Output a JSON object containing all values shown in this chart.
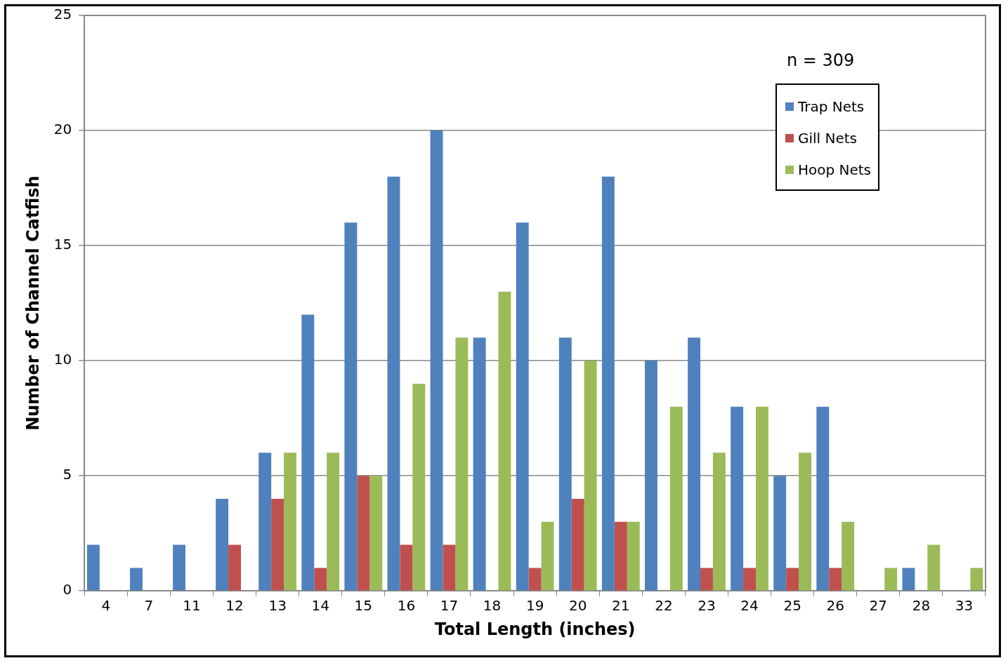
{
  "chart_data": {
    "type": "bar",
    "xlabel": "Total Length (inches)",
    "ylabel": "Number of Channel Catfish",
    "categories": [
      "4",
      "7",
      "11",
      "12",
      "13",
      "14",
      "15",
      "16",
      "17",
      "18",
      "19",
      "20",
      "21",
      "22",
      "23",
      "24",
      "25",
      "26",
      "27",
      "28",
      "33"
    ],
    "series": [
      {
        "name": "Trap Nets",
        "color": "#4f81bd",
        "values": [
          2,
          1,
          2,
          4,
          6,
          12,
          16,
          18,
          20,
          11,
          16,
          11,
          18,
          10,
          11,
          8,
          5,
          8,
          0,
          1,
          0
        ]
      },
      {
        "name": "Gill Nets",
        "color": "#c0504d",
        "values": [
          0,
          0,
          0,
          2,
          4,
          1,
          5,
          2,
          2,
          0,
          1,
          4,
          3,
          0,
          1,
          1,
          1,
          1,
          0,
          0,
          0
        ]
      },
      {
        "name": "Hoop Nets",
        "color": "#9bbb59",
        "values": [
          0,
          0,
          0,
          0,
          6,
          6,
          5,
          9,
          11,
          13,
          3,
          10,
          3,
          8,
          6,
          8,
          6,
          3,
          1,
          2,
          1
        ]
      }
    ],
    "ylim": [
      0,
      25
    ],
    "yticks": [
      0,
      5,
      10,
      15,
      20,
      25
    ],
    "grid": "y",
    "legend": "top right",
    "annotations": [
      "n = 309"
    ]
  }
}
